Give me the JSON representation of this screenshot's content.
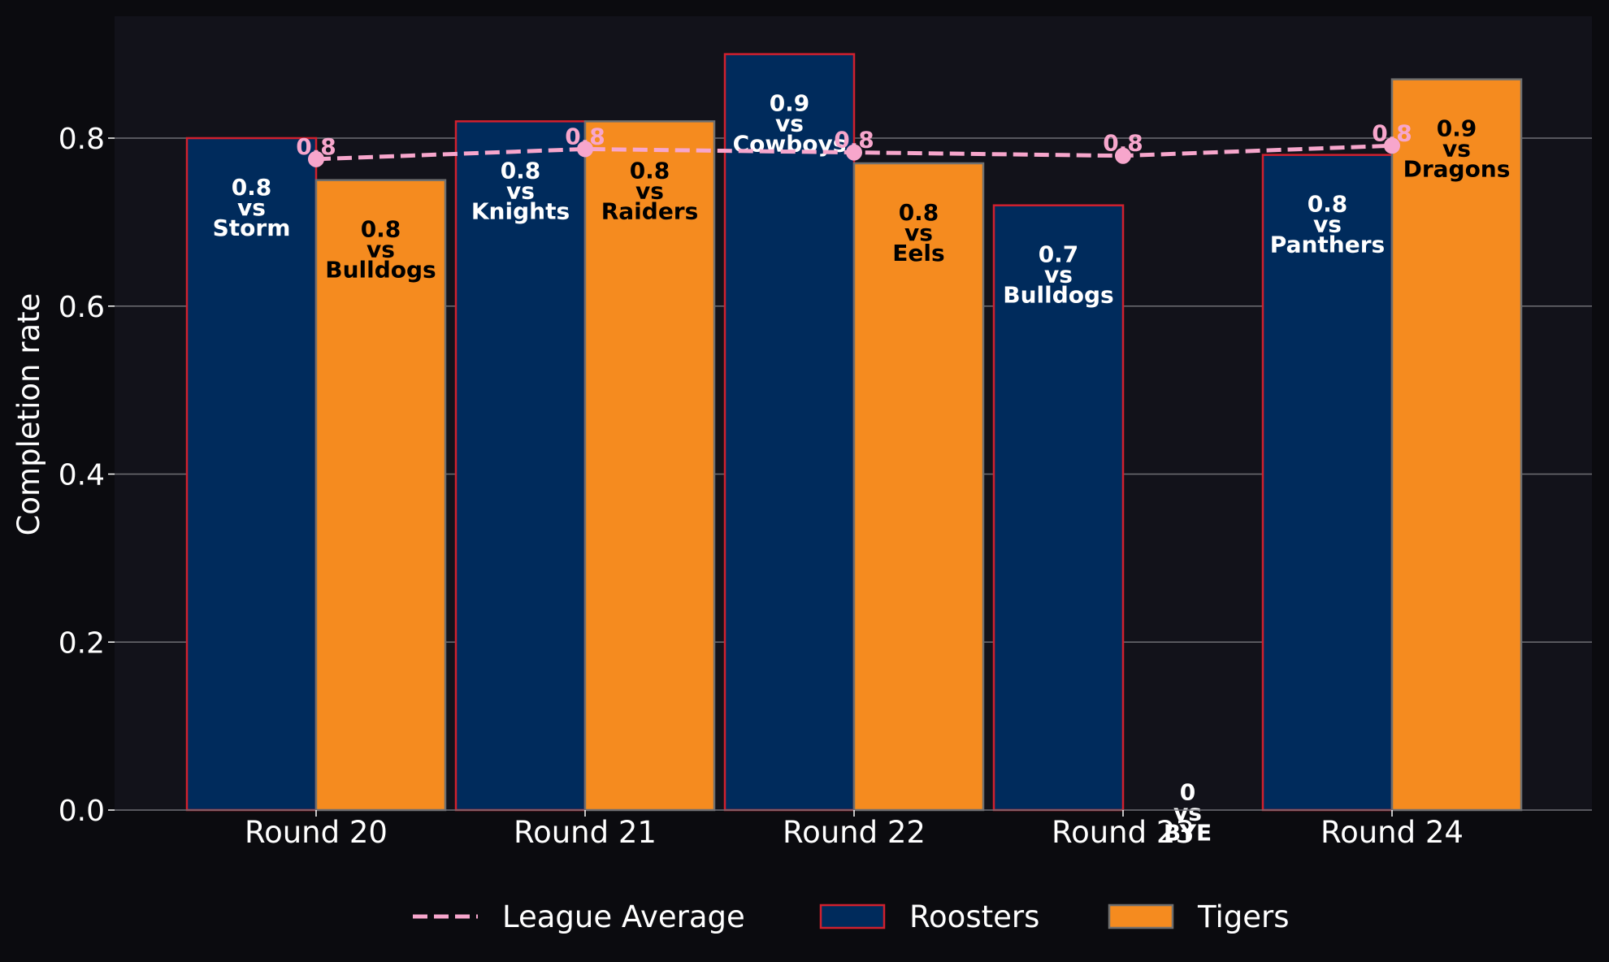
{
  "chart_data": {
    "type": "bar",
    "title": "",
    "xlabel": "",
    "ylabel": "Completion rate",
    "ylim": [
      0,
      0.945
    ],
    "yticks": [
      "0.0",
      "0.2",
      "0.4",
      "0.6",
      "0.8"
    ],
    "ytick_values": [
      0,
      0.2,
      0.4,
      0.6,
      0.8
    ],
    "grid": true,
    "legend_position": "bottom",
    "categories": [
      "Round 20",
      "Round 21",
      "Round 22",
      "Round 23",
      "Round 24"
    ],
    "series": [
      {
        "name": "Roosters",
        "color": "#002b5c",
        "edge_color": "#d0202e",
        "values": [
          0.8,
          0.82,
          0.9,
          0.72,
          0.78
        ],
        "labels": [
          [
            "0.8",
            "vs",
            "Storm"
          ],
          [
            "0.8",
            "vs",
            "Knights"
          ],
          [
            "0.9",
            "vs",
            "Cowboys"
          ],
          [
            "0.7",
            "vs",
            "Bulldogs"
          ],
          [
            "0.8",
            "vs",
            "Panthers"
          ]
        ]
      },
      {
        "name": "Tigers",
        "color": "#f58b1f",
        "edge_color": "#6f6f6f",
        "values": [
          0.75,
          0.82,
          0.77,
          0,
          0.87
        ],
        "labels": [
          [
            "0.8",
            "vs",
            "Bulldogs"
          ],
          [
            "0.8",
            "vs",
            "Raiders"
          ],
          [
            "0.8",
            "vs",
            "Eels"
          ],
          [
            "0",
            "vs",
            "BYE"
          ],
          [
            "0.9",
            "vs",
            "Dragons"
          ]
        ]
      }
    ],
    "line_series": {
      "name": "League Average",
      "color": "#f7a6cc",
      "style": "dashed",
      "values": [
        0.775,
        0.787,
        0.783,
        0.779,
        0.791
      ],
      "labels": [
        "0.8",
        "0.8",
        "0.8",
        "0.8",
        "0.8"
      ]
    },
    "colors": {
      "background": "#0b0b0f",
      "plot_background": "#12121a",
      "grid": "#6e6e74",
      "text": "#ffffff"
    }
  }
}
